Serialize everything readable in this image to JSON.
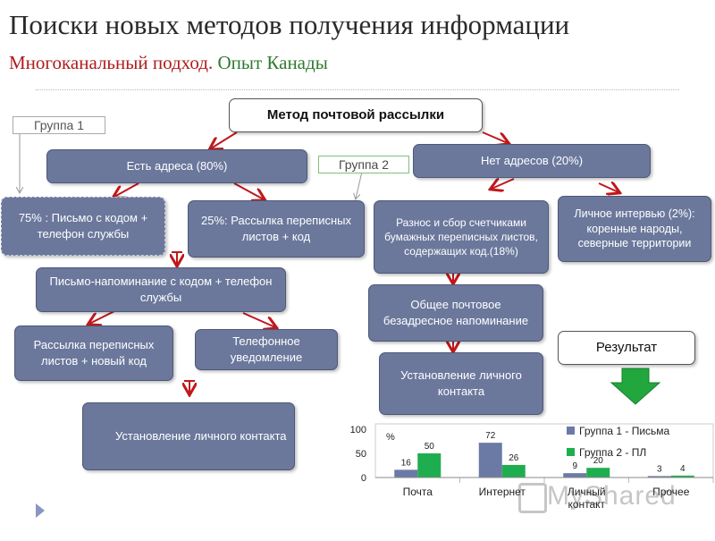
{
  "title": "Поиски новых методов получения информации",
  "subtitle": {
    "part1": "Многоканальный подход.",
    "part2": "Опыт Канады"
  },
  "groups": {
    "g1": "Группа 1",
    "g2": "Группа 2"
  },
  "boxes": {
    "method": "Метод почтовой рассылки",
    "have_addr": "Есть адреса (80%)",
    "no_addr": "Нет адресов (20%)",
    "letter75": "75% : Письмо с кодом + телефон службы",
    "mail25": "25%: Рассылка переписных листов + код",
    "delivery": "Разнос и сбор счетчиками бумажных переписных листов, содержащих код.(18%)",
    "interview": "Личное интервью (2%): коренные народы, северные территории",
    "reminder": "Письмо-напоминание с кодом + телефон службы",
    "post_reminder": "Общее почтовое безадресное напоминание",
    "mail_new": "Рассылка переписных листов + новый код",
    "phone": "Телефонное уведомление",
    "contact1": "Установление личного контакта",
    "contact2": "Установление личного контакта",
    "result": "Результат"
  },
  "colors": {
    "box": "#6b789c",
    "arrow": "#c0171b",
    "series1": "#6b7aa5",
    "series2": "#1fae4f",
    "down_arrow": "#22a63e"
  },
  "chart_data": {
    "type": "bar",
    "categories": [
      "Почта",
      "Интернет",
      "Личный контакт",
      "Прочее"
    ],
    "series": [
      {
        "name": "Группа 1 - Письма",
        "values": [
          16,
          72,
          9,
          3
        ]
      },
      {
        "name": "Группа 2 - ПЛ",
        "values": [
          50,
          26,
          20,
          4
        ]
      }
    ],
    "ylabel": "%",
    "yticks": [
      0,
      50,
      100
    ],
    "ylim": [
      0,
      100
    ],
    "legend": "right"
  },
  "watermark": "MyShared"
}
